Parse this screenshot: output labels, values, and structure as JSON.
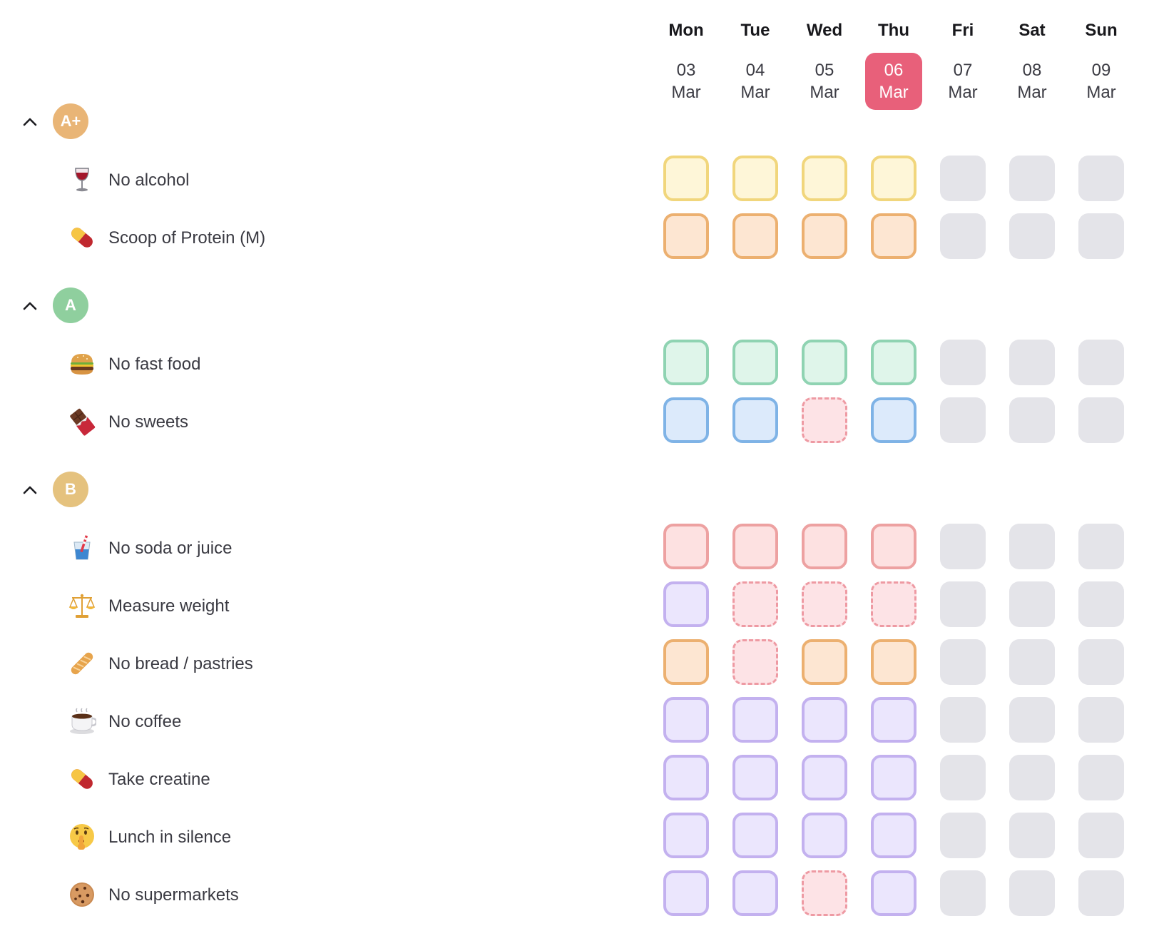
{
  "days": [
    {
      "name": "Mon",
      "day": "03",
      "month": "Mar",
      "today": false
    },
    {
      "name": "Tue",
      "day": "04",
      "month": "Mar",
      "today": false
    },
    {
      "name": "Wed",
      "day": "05",
      "month": "Mar",
      "today": false
    },
    {
      "name": "Thu",
      "day": "06",
      "month": "Mar",
      "today": true
    },
    {
      "name": "Fri",
      "day": "07",
      "month": "Mar",
      "today": false
    },
    {
      "name": "Sat",
      "day": "08",
      "month": "Mar",
      "today": false
    },
    {
      "name": "Sun",
      "day": "09",
      "month": "Mar",
      "today": false
    }
  ],
  "groups": [
    {
      "grade": "A+",
      "color": "#e9b576",
      "habits": [
        {
          "label": "No alcohol",
          "icon": "wine-glass-icon",
          "border": "#f1d67c",
          "fill": "#fef6d8",
          "days": [
            "done",
            "done",
            "done",
            "done",
            "future",
            "future",
            "future"
          ]
        },
        {
          "label": "Scoop of Protein (M)",
          "icon": "pill-icon",
          "border": "#ecb070",
          "fill": "#fde6d2",
          "days": [
            "done",
            "done",
            "done",
            "done",
            "future",
            "future",
            "future"
          ]
        }
      ]
    },
    {
      "grade": "A",
      "color": "#8fcf9e",
      "habits": [
        {
          "label": "No fast food",
          "icon": "burger-icon",
          "border": "#8fd3b2",
          "fill": "#dff5ea",
          "days": [
            "done",
            "done",
            "done",
            "done",
            "future",
            "future",
            "future"
          ]
        },
        {
          "label": "No sweets",
          "icon": "chocolate-bar-icon",
          "border": "#7fb3e6",
          "fill": "#dceafb",
          "days": [
            "done",
            "done",
            "missed",
            "done",
            "future",
            "future",
            "future"
          ]
        }
      ]
    },
    {
      "grade": "B",
      "color": "#e5c27e",
      "habits": [
        {
          "label": "No soda or juice",
          "icon": "cup-with-straw-icon",
          "border": "#eda1a1",
          "fill": "#fde1e1",
          "days": [
            "done",
            "done",
            "done",
            "done",
            "future",
            "future",
            "future"
          ]
        },
        {
          "label": "Measure weight",
          "icon": "balance-scale-icon",
          "border": "#c3b1ef",
          "fill": "#ebe6fd",
          "days": [
            "done",
            "missed",
            "missed",
            "missed",
            "future",
            "future",
            "future"
          ]
        },
        {
          "label": "No bread / pastries",
          "icon": "baguette-icon",
          "border": "#ecb070",
          "fill": "#fde6d2",
          "days": [
            "done",
            "missed",
            "done",
            "done",
            "future",
            "future",
            "future"
          ]
        },
        {
          "label": "No coffee",
          "icon": "hot-beverage-icon",
          "border": "#c3b1ef",
          "fill": "#ebe6fd",
          "days": [
            "done",
            "done",
            "done",
            "done",
            "future",
            "future",
            "future"
          ]
        },
        {
          "label": "Take creatine",
          "icon": "pill-icon",
          "border": "#c3b1ef",
          "fill": "#ebe6fd",
          "days": [
            "done",
            "done",
            "done",
            "done",
            "future",
            "future",
            "future"
          ]
        },
        {
          "label": "Lunch in silence",
          "icon": "shushing-face-icon",
          "border": "#c3b1ef",
          "fill": "#ebe6fd",
          "days": [
            "done",
            "done",
            "done",
            "done",
            "future",
            "future",
            "future"
          ]
        },
        {
          "label": "No supermarkets",
          "icon": "cookie-icon",
          "border": "#c3b1ef",
          "fill": "#ebe6fd",
          "days": [
            "done",
            "done",
            "missed",
            "done",
            "future",
            "future",
            "future"
          ]
        }
      ]
    }
  ]
}
